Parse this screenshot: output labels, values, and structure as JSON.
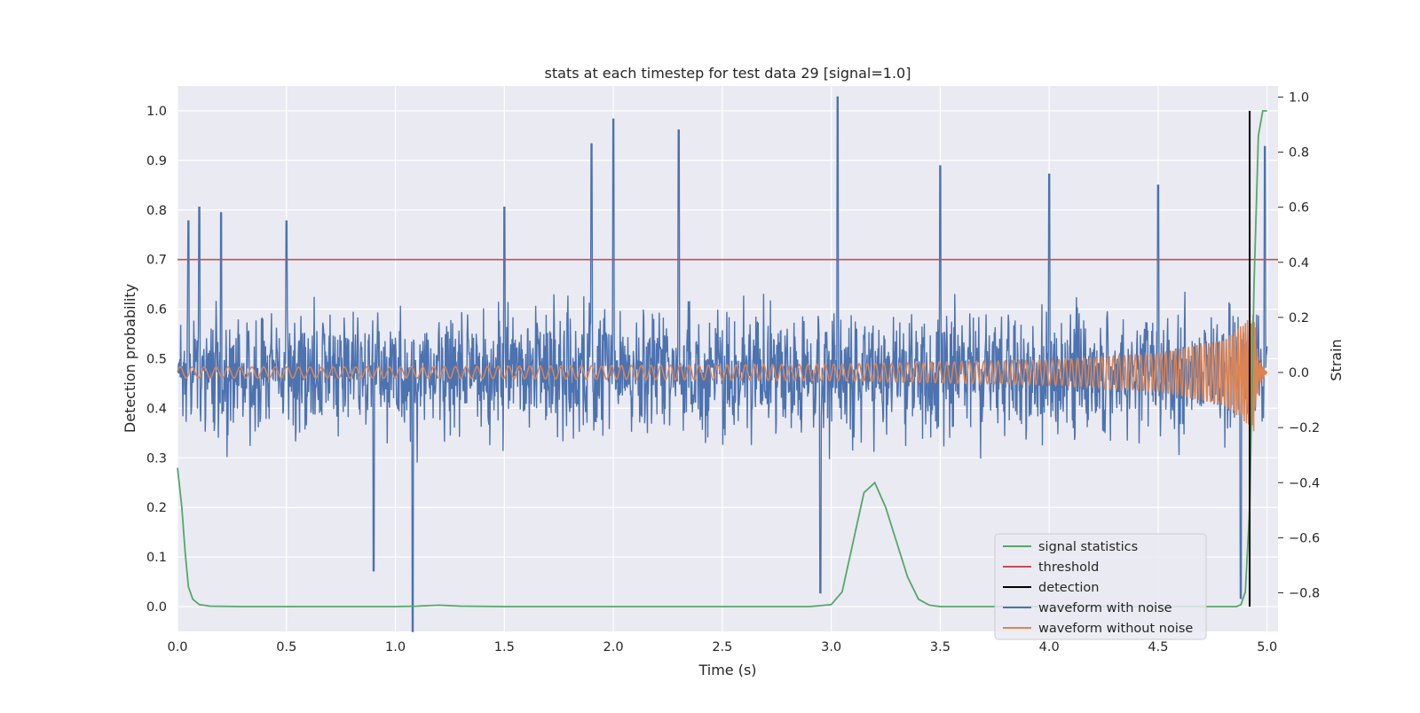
{
  "chart_data": {
    "type": "line",
    "title": "stats at each timestep for test data 29 [signal=1.0]",
    "xlabel": "Time (s)",
    "ylabel_left": "Detection probability",
    "ylabel_right": "Strain",
    "xlim": [
      0.0,
      5.05
    ],
    "ylim_left": [
      -0.05,
      1.05
    ],
    "ylim_right": [
      -0.94,
      1.04
    ],
    "x_ticks": [
      0.0,
      0.5,
      1.0,
      1.5,
      2.0,
      2.5,
      3.0,
      3.5,
      4.0,
      4.5,
      5.0
    ],
    "x_tick_labels": [
      "0.0",
      "0.5",
      "1.0",
      "1.5",
      "2.0",
      "2.5",
      "3.0",
      "3.5",
      "4.0",
      "4.5",
      "5.0"
    ],
    "y_left_ticks": [
      0.0,
      0.1,
      0.2,
      0.3,
      0.4,
      0.5,
      0.6,
      0.7,
      0.8,
      0.9,
      1.0
    ],
    "y_left_tick_labels": [
      "0.0",
      "0.1",
      "0.2",
      "0.3",
      "0.4",
      "0.5",
      "0.6",
      "0.7",
      "0.8",
      "0.9",
      "1.0"
    ],
    "y_right_ticks": [
      -0.8,
      -0.6,
      -0.4,
      -0.2,
      0.0,
      0.2,
      0.4,
      0.6,
      0.8,
      1.0
    ],
    "y_right_tick_labels": [
      "−0.8",
      "−0.6",
      "−0.4",
      "−0.2",
      "0.0",
      "0.2",
      "0.4",
      "0.6",
      "0.8",
      "1.0"
    ],
    "grid": true,
    "legend_position": "lower-right",
    "colors": {
      "background": "#eaeaf2",
      "grid": "#ffffff",
      "signal_statistics": "#55a868",
      "threshold": "#c44e52",
      "detection": "#000000",
      "waveform_with_noise": "#4c72b0",
      "waveform_without_noise": "#dd8452"
    },
    "legend": [
      "signal statistics",
      "threshold",
      "detection",
      "waveform with noise",
      "waveform without noise"
    ],
    "series": [
      {
        "name": "signal statistics",
        "axis": "left",
        "x": [
          0.0,
          0.02,
          0.035,
          0.05,
          0.07,
          0.1,
          0.15,
          0.3,
          1.0,
          1.1,
          1.2,
          1.3,
          1.5,
          2.9,
          3.0,
          3.05,
          3.1,
          3.15,
          3.2,
          3.25,
          3.3,
          3.35,
          3.4,
          3.45,
          3.5,
          4.86,
          4.88,
          4.9,
          4.92,
          4.94,
          4.96,
          4.98,
          5.0
        ],
        "values": [
          0.28,
          0.2,
          0.11,
          0.04,
          0.015,
          0.004,
          0.001,
          0.0,
          0.0,
          0.001,
          0.003,
          0.001,
          0.0,
          0.0,
          0.004,
          0.03,
          0.13,
          0.23,
          0.25,
          0.2,
          0.13,
          0.06,
          0.015,
          0.003,
          0.0,
          0.0,
          0.004,
          0.03,
          0.2,
          0.65,
          0.95,
          1.0,
          1.0
        ]
      },
      {
        "name": "threshold",
        "axis": "left",
        "x": [
          0.0,
          5.05
        ],
        "values": [
          0.7,
          0.7
        ]
      },
      {
        "name": "detection",
        "axis": "left",
        "x": [
          4.92,
          4.92
        ],
        "values": [
          0.0,
          1.0
        ]
      },
      {
        "name": "waveform with noise",
        "axis": "right",
        "description_of_values": "dense noisy strain trace, amplitude roughly within -0.94 to 1.0",
        "x": [
          0.0,
          0.05,
          0.1,
          0.2,
          0.5,
          0.9,
          1.08,
          1.5,
          1.9,
          2.0,
          2.3,
          2.95,
          3.03,
          3.5,
          4.0,
          4.5,
          4.88,
          4.99
        ],
        "values": [
          0.0,
          0.55,
          0.6,
          0.58,
          0.55,
          -0.72,
          -0.94,
          0.6,
          0.83,
          0.92,
          0.88,
          -0.8,
          1.0,
          0.75,
          0.72,
          0.68,
          -0.82,
          0.82
        ]
      },
      {
        "name": "waveform without noise",
        "axis": "right",
        "description_of_values": "chirp oscillation centered at 0.0, amplitude growing from ~0.02 to ~0.22 before merger near 4.95 s",
        "x": [
          0.0,
          1.0,
          2.0,
          3.0,
          4.0,
          4.5,
          4.8,
          4.9,
          4.94,
          4.96,
          5.0
        ],
        "values": [
          0.02,
          0.02,
          0.025,
          0.03,
          0.045,
          0.07,
          0.12,
          0.18,
          0.22,
          0.05,
          0.0
        ]
      }
    ]
  }
}
